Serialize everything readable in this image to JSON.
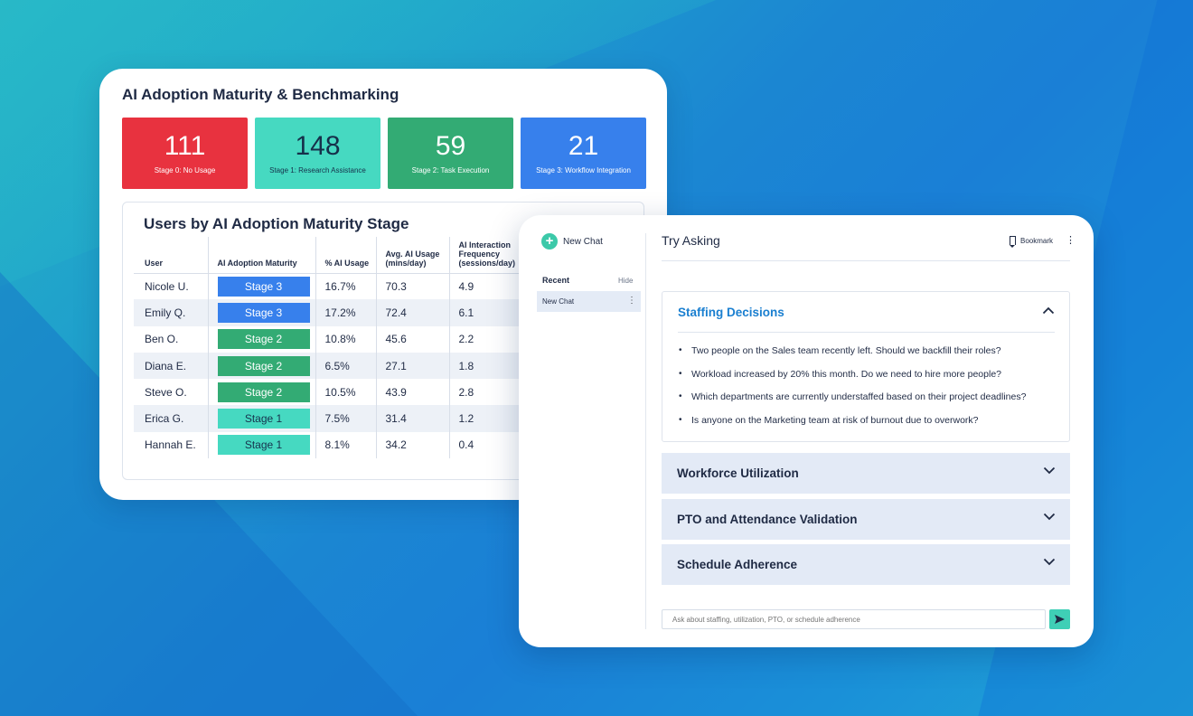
{
  "colors": {
    "stage0": "#e8323f",
    "stage1": "#46d9c1",
    "stage2": "#33ab74",
    "stage3": "#3780ec",
    "accent_blue": "#1a7fd0",
    "accordion_bg": "#e3eaf6"
  },
  "dashboard": {
    "title": "AI Adoption Maturity & Benchmarking",
    "tiles": [
      {
        "value": "111",
        "label": "Stage 0: No Usage"
      },
      {
        "value": "148",
        "label": "Stage 1: Research Assistance"
      },
      {
        "value": "59",
        "label": "Stage 2: Task Execution"
      },
      {
        "value": "21",
        "label": "Stage 3: Workflow Integration"
      }
    ],
    "table_title": "Users by AI Adoption Maturity Stage",
    "columns": [
      "User",
      "AI Adoption Maturity",
      "% AI Usage",
      "Avg. AI Usage (mins/day)",
      "AI Interaction Frequency (sessions/day)"
    ],
    "rows": [
      {
        "user": "Nicole U.",
        "stage": "Stage 3",
        "pct": "16.7%",
        "avg": "70.3",
        "freq": "4.9"
      },
      {
        "user": "Emily Q.",
        "stage": "Stage 3",
        "pct": "17.2%",
        "avg": "72.4",
        "freq": "6.1"
      },
      {
        "user": "Ben O.",
        "stage": "Stage 2",
        "pct": "10.8%",
        "avg": "45.6",
        "freq": "2.2"
      },
      {
        "user": "Diana E.",
        "stage": "Stage 2",
        "pct": "6.5%",
        "avg": "27.1",
        "freq": "1.8"
      },
      {
        "user": "Steve O.",
        "stage": "Stage 2",
        "pct": "10.5%",
        "avg": "43.9",
        "freq": "2.8"
      },
      {
        "user": "Erica G.",
        "stage": "Stage 1",
        "pct": "7.5%",
        "avg": "31.4",
        "freq": "1.2"
      },
      {
        "user": "Hannah E.",
        "stage": "Stage 1",
        "pct": "8.1%",
        "avg": "34.2",
        "freq": "0.4"
      }
    ]
  },
  "chat": {
    "new_chat_label": "New Chat",
    "recent_label": "Recent",
    "hide_label": "Hide",
    "recent_items": [
      "New Chat"
    ],
    "header_title": "Try Asking",
    "bookmark_label": "Bookmark",
    "open_section": {
      "title": "Staffing Decisions",
      "questions": [
        "Two people on the Sales team recently left. Should we backfill their roles?",
        "Workload increased by 20% this month. Do we need to hire more people?",
        "Which departments are currently understaffed based on their project deadlines?",
        "Is anyone on the Marketing team at risk of burnout due to overwork?"
      ]
    },
    "collapsed_sections": [
      "Workforce Utilization",
      "PTO and Attendance Validation",
      "Schedule Adherence"
    ],
    "input_placeholder": "Ask about staffing, utilization, PTO, or schedule adherence"
  }
}
